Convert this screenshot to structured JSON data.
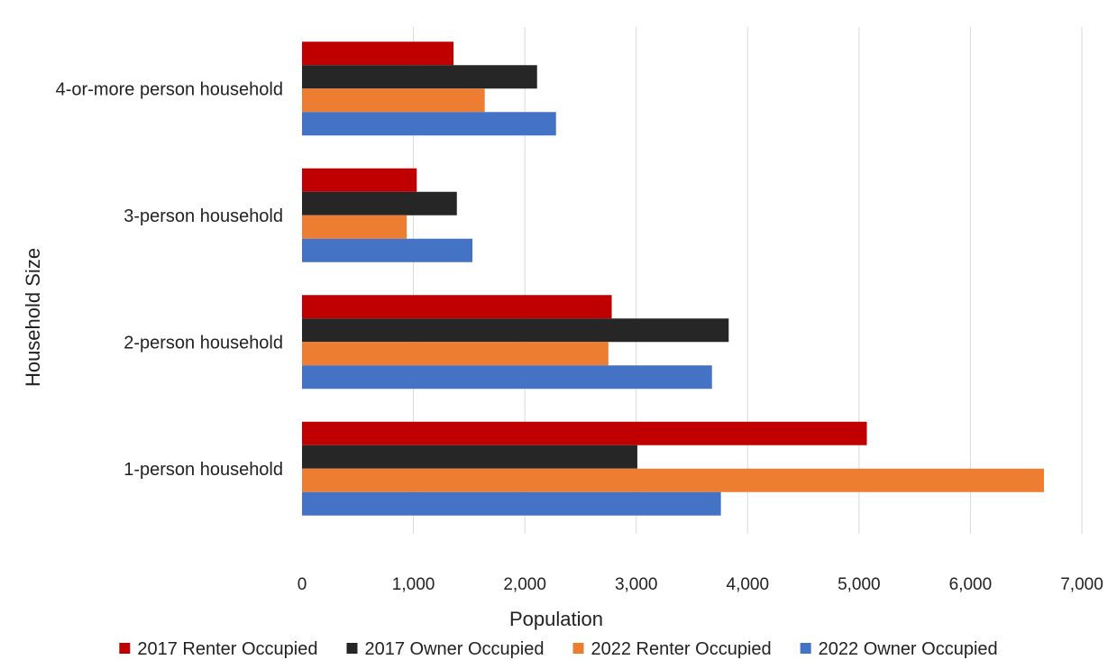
{
  "chart_data": {
    "type": "bar",
    "orientation": "horizontal",
    "title": "",
    "xlabel": "Population",
    "ylabel": "Household Size",
    "xlim": [
      0,
      7000
    ],
    "xticks": [
      0,
      1000,
      2000,
      3000,
      4000,
      5000,
      6000,
      7000
    ],
    "xtick_labels": [
      "0",
      "1,000",
      "2,000",
      "3,000",
      "4,000",
      "5,000",
      "6,000",
      "7,000"
    ],
    "grid": "vertical",
    "legend_position": "bottom",
    "categories": [
      "4-or-more person household",
      "3-person household",
      "2-person household",
      "1-person household"
    ],
    "series": [
      {
        "name": "2017 Renter Occupied",
        "color": "#c00000",
        "values": [
          1360,
          1030,
          2780,
          5070
        ]
      },
      {
        "name": "2017 Owner Occupied",
        "color": "#262626",
        "values": [
          2110,
          1390,
          3830,
          3010
        ]
      },
      {
        "name": "2022 Renter Occupied",
        "color": "#ed7d31",
        "values": [
          1640,
          940,
          2750,
          6660
        ]
      },
      {
        "name": "2022 Owner Occupied",
        "color": "#4472c4",
        "values": [
          2280,
          1530,
          3680,
          3760
        ]
      }
    ]
  }
}
